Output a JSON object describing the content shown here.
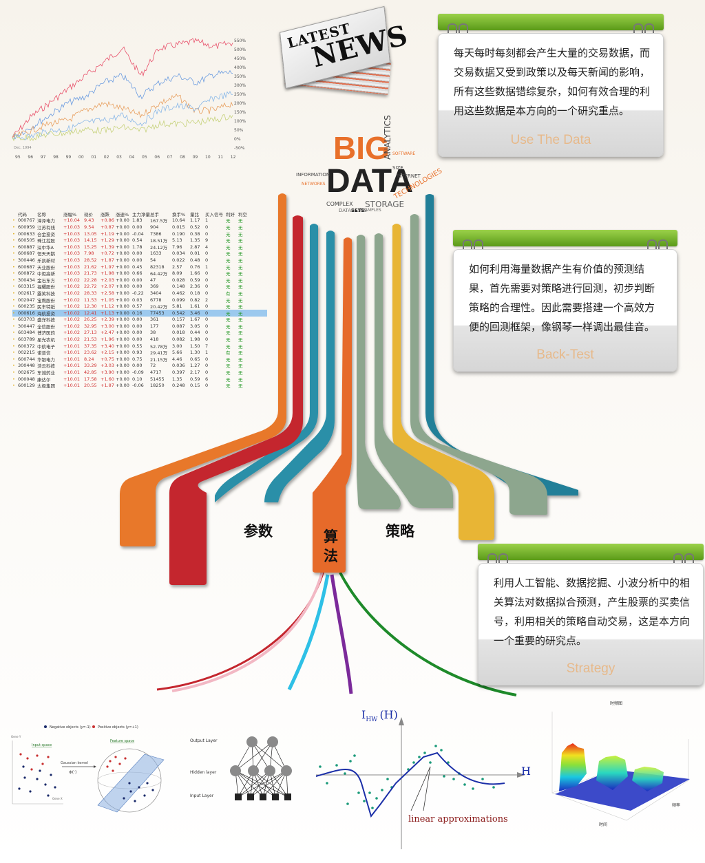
{
  "news": {
    "line1": "LATEST",
    "line2": "NEWS"
  },
  "bigdata": {
    "big": "BIG",
    "data": "DATA",
    "words": [
      "ANALYTICS",
      "TECHNOLOGIES",
      "STORAGE",
      "COMPLEX",
      "DATABASES",
      "INFORMATION",
      "INTERNET",
      "SOFTWARE",
      "NETWORKS",
      "SETS",
      "EXAMPLES",
      "SIZE"
    ]
  },
  "line_chart": {
    "x_labels": [
      "95",
      "96",
      "97",
      "98",
      "99",
      "00",
      "01",
      "02",
      "03",
      "04",
      "05",
      "06",
      "07",
      "08",
      "09",
      "10",
      "11",
      "12"
    ],
    "y_labels": [
      "550%",
      "500%",
      "450%",
      "400%",
      "350%",
      "300%",
      "250%",
      "200%",
      "150%",
      "100%",
      "50%",
      "0%",
      "-50%"
    ],
    "series_colors": [
      "#e8506a",
      "#6a9be0",
      "#e8a060",
      "#8ab8e8",
      "#c6d27a"
    ]
  },
  "cards": [
    {
      "text": "每天每时每刻都会产生大量的交易数据，而交易数据又受到政策以及每天新闻的影响，所有这些数据错综复杂，如何有效合理的利用这些数据是本方向的一个研究重点。",
      "caption": "Use The Data"
    },
    {
      "text": "如何利用海量数据产生有价值的预测结果，首先需要对策略进行回测，初步判断策略的合理性。因此需要搭建一个高效方便的回测框架，像钢琴一样调出最佳音。",
      "caption": "Back-Test"
    },
    {
      "text": "利用人工智能、数据挖掘、小波分析中的相关算法对数据拟合预测，产生股票的买卖信号，利用相关的策略自动交易，这是本方向一个重要的研究点。",
      "caption": "Strategy"
    }
  ],
  "labels": {
    "params": "参数",
    "algo1": "算",
    "algo2": "法",
    "strategy": "策略"
  },
  "stock_table": {
    "headers": [
      "代码",
      "名称",
      "涨幅%",
      "现价",
      "涨跌",
      "涨速%",
      "主力净量",
      "总手",
      "换手%",
      "量比",
      "买入信号",
      "利好",
      "利空"
    ],
    "rows": [
      [
        "000767",
        "漳泽电力",
        "+10.04",
        "9.43",
        "+0.86",
        "+0.00",
        "1.83",
        "167.5万",
        "10.64",
        "1.17",
        "1",
        "无",
        "无"
      ],
      [
        "600959",
        "江苏有线",
        "+10.03",
        "9.54",
        "+0.87",
        "+0.00",
        "0.00",
        "904",
        "0.015",
        "0.52",
        "0",
        "无",
        "无"
      ],
      [
        "000633",
        "合金投资",
        "+10.03",
        "13.05",
        "+1.19",
        "+0.00",
        "-0.04",
        "7386",
        "0.190",
        "0.38",
        "0",
        "无",
        "无"
      ],
      [
        "600505",
        "珠江控股",
        "+10.03",
        "14.15",
        "+1.29",
        "+0.00",
        "0.54",
        "18.51万",
        "5.13",
        "1.35",
        "9",
        "无",
        "无"
      ],
      [
        "600887",
        "深中华A",
        "+10.03",
        "15.25",
        "+1.39",
        "+0.00",
        "1.78",
        "24.12万",
        "7.96",
        "2.87",
        "4",
        "无",
        "无"
      ],
      [
        "600687",
        "恒天天鹅",
        "+10.03",
        "7.98",
        "+0.72",
        "+0.00",
        "0.00",
        "1633",
        "0.034",
        "0.01",
        "0",
        "无",
        "无"
      ],
      [
        "300446",
        "乐凯新材",
        "+10.03",
        "28.52",
        "+1.87",
        "+0.00",
        "0.00",
        "54",
        "0.022",
        "0.48",
        "0",
        "无",
        "无"
      ],
      [
        "600687",
        "天业股份",
        "+10.03",
        "21.62",
        "+1.97",
        "+0.00",
        "0.45",
        "82318",
        "2.57",
        "0.76",
        "1",
        "无",
        "无"
      ],
      [
        "600872",
        "中炬高新",
        "+10.03",
        "21.73",
        "+1.98",
        "+0.00",
        "0.66",
        "64.42万",
        "8.09",
        "1.66",
        "0",
        "无",
        "无"
      ],
      [
        "300434",
        "金石东方",
        "+10.02",
        "22.28",
        "+2.03",
        "+0.00",
        "0.00",
        "47",
        "0.028",
        "0.59",
        "0",
        "无",
        "无"
      ],
      [
        "603315",
        "福耀股份",
        "+10.02",
        "22.72",
        "+2.07",
        "+0.00",
        "0.00",
        "369",
        "0.148",
        "2.36",
        "0",
        "无",
        "无"
      ],
      [
        "002617",
        "露笑科技",
        "+10.02",
        "28.33",
        "+2.58",
        "+0.00",
        "-0.22",
        "3404",
        "0.462",
        "0.18",
        "0",
        "有",
        "无"
      ],
      [
        "002047",
        "宝鹰股份",
        "+10.02",
        "11.53",
        "+1.05",
        "+0.00",
        "0.03",
        "6778",
        "0.099",
        "0.82",
        "2",
        "无",
        "无"
      ],
      [
        "600235",
        "民丰特纸",
        "+10.02",
        "12.30",
        "+1.12",
        "+0.00",
        "0.57",
        "20.42万",
        "5.81",
        "1.61",
        "0",
        "无",
        "无"
      ],
      [
        "000616",
        "海航投资",
        "+10.02",
        "12.41",
        "+1.13",
        "+0.00",
        "0.16",
        "77453",
        "0.542",
        "3.46",
        "0",
        "无",
        "无"
      ],
      [
        "603703",
        "盛洋科技",
        "+10.02",
        "26.25",
        "+2.39",
        "+0.00",
        "0.00",
        "361",
        "0.157",
        "1.67",
        "0",
        "无",
        "无"
      ],
      [
        "300447",
        "全信股份",
        "+10.02",
        "32.95",
        "+3.00",
        "+0.00",
        "0.00",
        "177",
        "0.087",
        "3.05",
        "0",
        "无",
        "无"
      ],
      [
        "603484",
        "博济医药",
        "+10.02",
        "27.13",
        "+2.47",
        "+0.00",
        "0.00",
        "38",
        "0.018",
        "0.44",
        "0",
        "无",
        "无"
      ],
      [
        "603789",
        "星光农机",
        "+10.02",
        "21.53",
        "+1.96",
        "+0.00",
        "0.00",
        "418",
        "0.082",
        "1.98",
        "0",
        "无",
        "无"
      ],
      [
        "600372",
        "中航电子",
        "+10.01",
        "37.35",
        "+3.40",
        "+0.00",
        "0.55",
        "52.78万",
        "3.00",
        "1.50",
        "7",
        "无",
        "无"
      ],
      [
        "002215",
        "诺普信",
        "+10.01",
        "23.62",
        "+2.15",
        "+0.00",
        "0.93",
        "29.41万",
        "5.66",
        "1.30",
        "1",
        "有",
        "无"
      ],
      [
        "600744",
        "华银电力",
        "+10.01",
        "8.24",
        "+0.75",
        "+0.00",
        "0.75",
        "21.15万",
        "4.46",
        "0.65",
        "0",
        "无",
        "无"
      ],
      [
        "300448",
        "浩云科技",
        "+10.01",
        "33.29",
        "+3.03",
        "+0.00",
        "0.00",
        "72",
        "0.036",
        "1.27",
        "0",
        "无",
        "无"
      ],
      [
        "002675",
        "东诚药业",
        "+10.01",
        "42.85",
        "+3.90",
        "+0.00",
        "-0.09",
        "4717",
        "0.397",
        "2.17",
        "0",
        "无",
        "无"
      ],
      [
        "000048",
        "康达尔",
        "+10.01",
        "17.58",
        "+1.60",
        "+0.00",
        "0.10",
        "51455",
        "1.35",
        "0.59",
        "6",
        "无",
        "无"
      ],
      [
        "600129",
        "太极集团",
        "+10.01",
        "20.55",
        "+1.87",
        "+0.00",
        "-0.06",
        "18250",
        "0.248",
        "0.15",
        "0",
        "无",
        "无"
      ]
    ],
    "selected_row": 14
  },
  "svm": {
    "legend_neg": "Negative objects (y=-1)",
    "legend_pos": "Positive objects (y=+1)",
    "input_space": "Input space",
    "feature_space": "Feature space",
    "kernel": "Gaussian kernel",
    "phi": "Φ(·)",
    "gene_x": "Gene Y",
    "gene_y": "Gene X"
  },
  "nn": {
    "output": "Output Layer",
    "hidden": "Hidden layer",
    "input": "Input Layer"
  },
  "hw": {
    "ylabel": "I",
    "ysub": "HW",
    "yunit": "(H)",
    "xlabel": "H",
    "annot": "linear approximations"
  },
  "surface": {
    "title": "时频图",
    "xlabel": "时间",
    "ylabel": "频率"
  }
}
